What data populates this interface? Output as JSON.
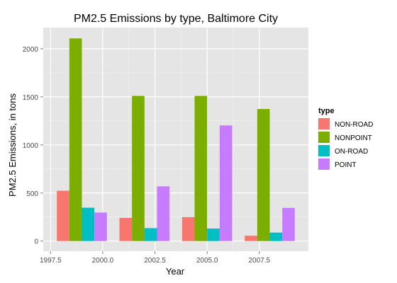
{
  "chart_data": {
    "type": "bar",
    "title": "PM2.5 Emissions by type, Baltimore City",
    "xlabel": "Year",
    "ylabel": "PM2.5 Emissions, in tons",
    "x": [
      1999,
      2002,
      2005,
      2008
    ],
    "x_ticks": [
      "1997.5",
      "2000.0",
      "2002.5",
      "2005.0",
      "2007.5"
    ],
    "x_tick_values": [
      1997.5,
      2000.0,
      2002.5,
      2005.0,
      2007.5
    ],
    "xlim": [
      1997.15,
      2009.85
    ],
    "y_ticks": [
      "0",
      "500",
      "1000",
      "1500",
      "2000"
    ],
    "y_tick_values": [
      0,
      500,
      1000,
      1500,
      2000
    ],
    "ylim": [
      -105,
      2220
    ],
    "bar_group_width": 2.4,
    "grid": true,
    "legend": {
      "title": "type",
      "position": "right"
    },
    "series": [
      {
        "name": "NON-ROAD",
        "color": "#F8766D",
        "values": [
          522.94,
          240.85,
          248.93,
          55.82
        ]
      },
      {
        "name": "NONPOINT",
        "color": "#7CAE00",
        "values": [
          2107.63,
          1509.5,
          1509.5,
          1373.21
        ]
      },
      {
        "name": "ON-ROAD",
        "color": "#00BFC4",
        "values": [
          346.82,
          134.31,
          130.43,
          88.28
        ]
      },
      {
        "name": "POINT",
        "color": "#C77CFF",
        "values": [
          296.8,
          569.26,
          1202.49,
          344.98
        ]
      }
    ]
  }
}
